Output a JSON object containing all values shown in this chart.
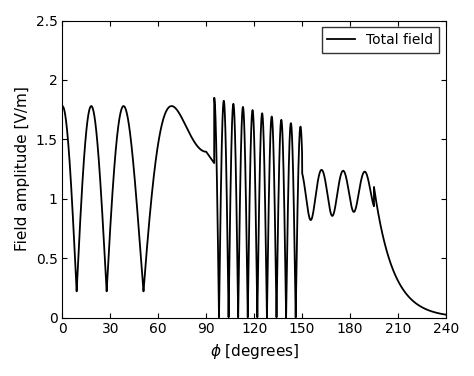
{
  "xlabel": "$\\phi$ [degrees]",
  "ylabel": "Field amplitude [V/m]",
  "xlim": [
    0,
    240
  ],
  "ylim": [
    0,
    2.5
  ],
  "xticks": [
    0,
    30,
    60,
    90,
    120,
    150,
    180,
    210,
    240
  ],
  "yticks": [
    0,
    0.5,
    1.0,
    1.5,
    2.0,
    2.5
  ],
  "ytick_labels": [
    "0",
    "0.5",
    "1",
    "1.5",
    "2",
    "2.5"
  ],
  "line_color": "#000000",
  "line_width": 1.3,
  "legend_label": "Total field",
  "background_color": "#ffffff",
  "legend_loc": "upper right",
  "legend_fontsize": 10,
  "axis_fontsize": 11,
  "tick_fontsize": 10,
  "n_points": 15000,
  "x_start": 0.0,
  "x_end": 240.0,
  "phi_inc_deg": 70.0,
  "phi_0_deg": 90.0,
  "k_r": 8.5,
  "wedge_n": 2.0
}
